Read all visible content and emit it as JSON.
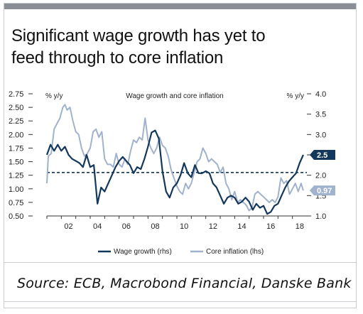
{
  "header": {
    "title_line1": "Significant wage growth has yet to",
    "title_line2": "feed through to core inflation"
  },
  "source": "Source: ECB, Macrobond Financial, Danske Bank",
  "colors": {
    "wage": "#14385c",
    "core": "#a0b2cc",
    "end_label_text": "#ffffff",
    "top_bar": "#8a8f96"
  },
  "chart_data": {
    "type": "line",
    "title": "Wage growth and core inflation",
    "left_axis_unit": "% y/y",
    "right_axis_unit": "% y/y",
    "left_ylim": [
      0.5,
      2.75
    ],
    "left_ticks": [
      "0.50",
      "0.75",
      "1.00",
      "1.25",
      "1.50",
      "1.75",
      "2.00",
      "2.25",
      "2.50",
      "2.75"
    ],
    "right_ylim": [
      1.0,
      4.0
    ],
    "right_ticks": [
      "1.0",
      "1.5",
      "2.0",
      "2.5",
      "3.0",
      "3.5",
      "4.0"
    ],
    "xlim": [
      2001,
      2019
    ],
    "x_tick_labels": [
      "02",
      "04",
      "06",
      "08",
      "10",
      "12",
      "14",
      "16",
      "18"
    ],
    "x_ticks": [
      2002,
      2004,
      2006,
      2008,
      2010,
      2012,
      2014,
      2016,
      2018
    ],
    "reference_line": {
      "axis": "left",
      "value": 1.3,
      "style": "dashed"
    },
    "series": [
      {
        "name": "Wage growth (rhs)",
        "axis": "right",
        "end_label": "2.5",
        "points": [
          [
            2001.0,
            2.5
          ],
          [
            2001.25,
            2.75
          ],
          [
            2001.5,
            2.6
          ],
          [
            2001.75,
            2.75
          ],
          [
            2002.0,
            2.6
          ],
          [
            2002.25,
            2.7
          ],
          [
            2002.5,
            2.5
          ],
          [
            2002.75,
            2.4
          ],
          [
            2003.0,
            2.35
          ],
          [
            2003.25,
            2.3
          ],
          [
            2003.5,
            2.2
          ],
          [
            2003.75,
            2.5
          ],
          [
            2004.0,
            2.2
          ],
          [
            2004.25,
            2.25
          ],
          [
            2004.5,
            1.3
          ],
          [
            2004.75,
            1.7
          ],
          [
            2005.0,
            1.6
          ],
          [
            2005.25,
            1.8
          ],
          [
            2005.5,
            2.0
          ],
          [
            2005.75,
            2.2
          ],
          [
            2006.0,
            2.35
          ],
          [
            2006.25,
            2.45
          ],
          [
            2006.5,
            2.35
          ],
          [
            2006.75,
            2.25
          ],
          [
            2007.0,
            2.05
          ],
          [
            2007.25,
            2.2
          ],
          [
            2007.5,
            2.15
          ],
          [
            2007.75,
            2.4
          ],
          [
            2008.0,
            2.7
          ],
          [
            2008.25,
            3.05
          ],
          [
            2008.5,
            3.1
          ],
          [
            2008.75,
            2.9
          ],
          [
            2009.0,
            2.1
          ],
          [
            2009.25,
            1.6
          ],
          [
            2009.5,
            1.45
          ],
          [
            2009.75,
            1.7
          ],
          [
            2010.0,
            1.8
          ],
          [
            2010.25,
            2.0
          ],
          [
            2010.5,
            2.3
          ],
          [
            2010.75,
            2.05
          ],
          [
            2011.0,
            1.95
          ],
          [
            2011.25,
            2.25
          ],
          [
            2011.5,
            2.05
          ],
          [
            2011.75,
            2.05
          ],
          [
            2012.0,
            2.1
          ],
          [
            2012.25,
            2.05
          ],
          [
            2012.5,
            1.8
          ],
          [
            2012.75,
            1.7
          ],
          [
            2013.0,
            1.5
          ],
          [
            2013.25,
            1.3
          ],
          [
            2013.5,
            1.45
          ],
          [
            2013.75,
            1.5
          ],
          [
            2014.0,
            1.45
          ],
          [
            2014.25,
            1.3
          ],
          [
            2014.5,
            1.35
          ],
          [
            2014.75,
            1.45
          ],
          [
            2015.0,
            1.35
          ],
          [
            2015.25,
            1.15
          ],
          [
            2015.5,
            1.3
          ],
          [
            2015.75,
            1.2
          ],
          [
            2016.0,
            1.25
          ],
          [
            2016.25,
            1.05
          ],
          [
            2016.5,
            1.1
          ],
          [
            2016.75,
            1.25
          ],
          [
            2017.0,
            1.3
          ],
          [
            2017.25,
            1.5
          ],
          [
            2017.5,
            1.7
          ],
          [
            2017.75,
            1.85
          ],
          [
            2018.0,
            1.95
          ],
          [
            2018.25,
            2.05
          ],
          [
            2018.5,
            2.3
          ],
          [
            2018.75,
            2.5
          ]
        ]
      },
      {
        "name": "Core inflation (lhs)",
        "axis": "left",
        "end_label": "0.97",
        "points": [
          [
            2001.0,
            1.1
          ],
          [
            2001.1,
            1.6
          ],
          [
            2001.3,
            1.65
          ],
          [
            2001.5,
            2.1
          ],
          [
            2001.7,
            2.2
          ],
          [
            2001.9,
            2.3
          ],
          [
            2002.1,
            2.5
          ],
          [
            2002.25,
            2.55
          ],
          [
            2002.4,
            2.45
          ],
          [
            2002.6,
            2.5
          ],
          [
            2002.8,
            2.25
          ],
          [
            2003.0,
            2.05
          ],
          [
            2003.2,
            2.0
          ],
          [
            2003.4,
            1.75
          ],
          [
            2003.6,
            1.6
          ],
          [
            2003.8,
            1.65
          ],
          [
            2004.0,
            1.75
          ],
          [
            2004.2,
            2.05
          ],
          [
            2004.4,
            2.1
          ],
          [
            2004.6,
            1.95
          ],
          [
            2004.8,
            2.05
          ],
          [
            2005.0,
            1.55
          ],
          [
            2005.2,
            1.45
          ],
          [
            2005.4,
            1.45
          ],
          [
            2005.6,
            1.4
          ],
          [
            2005.8,
            1.65
          ],
          [
            2006.0,
            1.45
          ],
          [
            2006.2,
            1.4
          ],
          [
            2006.4,
            1.55
          ],
          [
            2006.6,
            1.45
          ],
          [
            2006.8,
            1.7
          ],
          [
            2007.0,
            1.9
          ],
          [
            2007.2,
            1.85
          ],
          [
            2007.4,
            1.95
          ],
          [
            2007.6,
            1.9
          ],
          [
            2007.8,
            2.3
          ],
          [
            2008.0,
            1.9
          ],
          [
            2008.2,
            1.75
          ],
          [
            2008.4,
            1.65
          ],
          [
            2008.6,
            1.75
          ],
          [
            2008.8,
            1.95
          ],
          [
            2009.0,
            1.8
          ],
          [
            2009.2,
            1.75
          ],
          [
            2009.4,
            1.6
          ],
          [
            2009.6,
            1.35
          ],
          [
            2009.8,
            1.2
          ],
          [
            2010.0,
            1.05
          ],
          [
            2010.2,
            0.95
          ],
          [
            2010.4,
            0.9
          ],
          [
            2010.6,
            1.1
          ],
          [
            2010.8,
            1.0
          ],
          [
            2011.0,
            1.1
          ],
          [
            2011.2,
            1.3
          ],
          [
            2011.4,
            1.5
          ],
          [
            2011.6,
            1.55
          ],
          [
            2011.8,
            1.75
          ],
          [
            2012.0,
            1.65
          ],
          [
            2012.2,
            1.5
          ],
          [
            2012.4,
            1.55
          ],
          [
            2012.6,
            1.5
          ],
          [
            2012.8,
            1.45
          ],
          [
            2013.0,
            1.3
          ],
          [
            2013.2,
            1.4
          ],
          [
            2013.4,
            1.1
          ],
          [
            2013.6,
            1.0
          ],
          [
            2013.8,
            0.8
          ],
          [
            2014.0,
            0.95
          ],
          [
            2014.2,
            0.75
          ],
          [
            2014.4,
            0.8
          ],
          [
            2014.6,
            0.75
          ],
          [
            2014.8,
            0.7
          ],
          [
            2015.0,
            0.6
          ],
          [
            2015.2,
            0.65
          ],
          [
            2015.4,
            0.9
          ],
          [
            2015.6,
            0.95
          ],
          [
            2015.8,
            0.9
          ],
          [
            2016.0,
            0.85
          ],
          [
            2016.2,
            0.8
          ],
          [
            2016.4,
            0.75
          ],
          [
            2016.6,
            0.8
          ],
          [
            2016.8,
            0.75
          ],
          [
            2017.0,
            0.85
          ],
          [
            2017.2,
            1.2
          ],
          [
            2017.4,
            1.1
          ],
          [
            2017.6,
            1.15
          ],
          [
            2017.8,
            0.9
          ],
          [
            2018.0,
            1.0
          ],
          [
            2018.2,
            1.1
          ],
          [
            2018.4,
            0.95
          ],
          [
            2018.6,
            1.1
          ],
          [
            2018.75,
            0.97
          ]
        ]
      }
    ],
    "legend": [
      "Wage growth (rhs)",
      "Core inflation (lhs)"
    ],
    "legend_position": "bottom-center"
  }
}
